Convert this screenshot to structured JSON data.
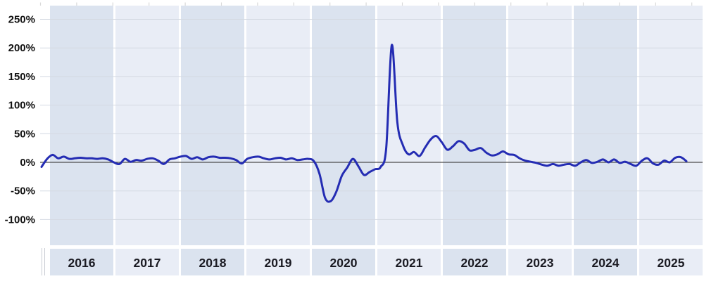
{
  "chart_data": {
    "type": "line",
    "title": "",
    "xlabel": "",
    "ylabel": "",
    "y_axis": {
      "tick_labels": [
        "250%",
        "200%",
        "150%",
        "100%",
        "50%",
        "0%",
        "-50%",
        "-100%"
      ],
      "tick_values": [
        250,
        200,
        150,
        100,
        50,
        0,
        -50,
        -100
      ],
      "unit": "%",
      "ylim_visible": [
        -143,
        273
      ]
    },
    "x_axis": {
      "categories": [
        "2016",
        "2017",
        "2018",
        "2019",
        "2020",
        "2021",
        "2022",
        "2023",
        "2024",
        "2025"
      ]
    },
    "grid": true,
    "legend": "none",
    "series": [
      {
        "name": "year-over-year-percent-change",
        "frequency": "monthly",
        "start": "2015-12",
        "end": "2025-08",
        "values": [
          -8,
          6,
          13,
          7,
          10,
          6,
          7,
          8,
          7,
          7,
          6,
          7,
          5,
          0,
          -3,
          6,
          1,
          4,
          3,
          6,
          7,
          3,
          -3,
          5,
          7,
          10,
          11,
          6,
          9,
          5,
          9,
          10,
          8,
          8,
          7,
          4,
          -2,
          6,
          9,
          10,
          7,
          5,
          7,
          8,
          5,
          7,
          4,
          5,
          6,
          2,
          -20,
          -62,
          -68,
          -52,
          -24,
          -9,
          6,
          -7,
          -22,
          -17,
          -12,
          -8,
          25,
          205,
          70,
          30,
          14,
          18,
          11,
          26,
          40,
          46,
          35,
          22,
          28,
          37,
          33,
          21,
          22,
          25,
          17,
          12,
          14,
          19,
          14,
          13,
          7,
          3,
          1,
          -1,
          -4,
          -6,
          -3,
          -6,
          -4,
          -3,
          -6,
          0,
          4,
          -1,
          1,
          5,
          0,
          5,
          -1,
          1,
          -3,
          -6,
          3,
          7,
          -2,
          -4,
          3,
          0,
          8,
          9,
          2
        ],
        "key_points": {
          "min": {
            "when": "2020-04",
            "value": -68
          },
          "max": {
            "when": "2021-03",
            "value": 205
          }
        }
      }
    ],
    "colors": {
      "line": "#242cb3",
      "band_dark": "#dbe3ef",
      "band_light": "#e9edf6",
      "gridline": "#d4d9e2",
      "zero_axis": "#4d4d4d",
      "axis_tick": "#c9cdd4",
      "year_label_text": "#1a1a22",
      "y_label_text": "#111111",
      "background": "#ffffff"
    }
  }
}
